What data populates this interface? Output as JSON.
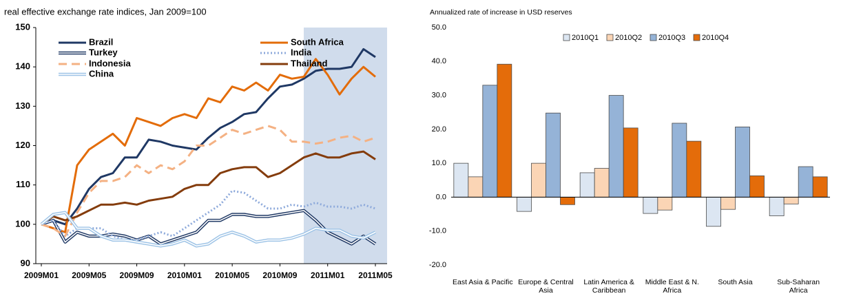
{
  "chart_data": [
    {
      "type": "line",
      "title": "real effective exchange rate indices, Jan 2009=100",
      "categories": [
        "2009M01",
        null,
        null,
        null,
        "2009M05",
        null,
        null,
        null,
        "2009M09",
        null,
        null,
        null,
        "2010M01",
        null,
        null,
        null,
        "2010M05",
        null,
        null,
        null,
        "2010M09",
        null,
        null,
        null,
        "2011M01",
        null,
        null,
        null,
        "2011M05"
      ],
      "ylim": [
        90,
        150
      ],
      "yticks": [
        90,
        100,
        110,
        120,
        130,
        140,
        150
      ],
      "series": [
        {
          "name": "Brazil",
          "color": "#1f3864",
          "style": "solid",
          "values": [
            100,
            101,
            100,
            104,
            109,
            112,
            113,
            117,
            117,
            121.5,
            121,
            120,
            119.5,
            119,
            122,
            124.5,
            126,
            128,
            128.5,
            132,
            135,
            135.5,
            137,
            139,
            139.5,
            139.5,
            140,
            144.5,
            142.5
          ]
        },
        {
          "name": "South Africa",
          "color": "#e36c09",
          "style": "solid",
          "values": [
            100,
            99,
            98,
            115,
            119,
            121,
            123,
            120,
            127,
            126,
            125,
            127,
            128,
            127,
            132,
            131,
            135,
            134,
            136,
            134,
            138,
            137,
            137.5,
            142,
            138,
            133,
            137,
            140,
            137.5
          ]
        },
        {
          "name": "Turkey",
          "color": "#1f3864",
          "style": "double",
          "values": [
            100,
            101,
            95.5,
            98,
            97,
            97,
            97.5,
            97,
            96,
            97,
            95,
            96,
            97,
            98,
            101,
            101,
            102.5,
            102.5,
            102,
            102,
            102.5,
            103,
            103.5,
            101,
            98,
            96.5,
            95,
            97,
            95
          ]
        },
        {
          "name": "India",
          "color": "#8eaadb",
          "style": "dotted",
          "values": [
            100,
            101,
            97,
            99,
            99,
            99,
            97,
            96,
            96,
            97,
            98,
            97,
            99,
            101,
            103,
            105,
            108.5,
            108,
            106,
            104,
            104,
            105,
            104.5,
            105.5,
            104.5,
            104.5,
            104,
            105,
            104
          ]
        },
        {
          "name": "Indonesia",
          "color": "#f4b183",
          "style": "dashed",
          "values": [
            100,
            99,
            97,
            103,
            108,
            111,
            111,
            112,
            115,
            113,
            115,
            114,
            116,
            120,
            120,
            122,
            124,
            123,
            124,
            125,
            124,
            121,
            121,
            120.5,
            121,
            122,
            122.5,
            121,
            122
          ]
        },
        {
          "name": "Thailand",
          "color": "#843c0c",
          "style": "solid",
          "values": [
            100,
            102,
            101,
            102,
            103.5,
            105,
            105,
            105.5,
            105,
            106,
            106.5,
            107,
            109,
            110,
            110,
            113,
            114,
            114.5,
            114.5,
            112,
            113,
            115,
            117,
            118,
            117,
            117,
            118,
            118.5,
            116.5
          ]
        },
        {
          "name": "China",
          "color": "#9dc3e6",
          "style": "double",
          "values": [
            100,
            102.5,
            103,
            99,
            99,
            97,
            96,
            96,
            95.5,
            95,
            94.5,
            95,
            96,
            94.5,
            95,
            97,
            98,
            97,
            95.5,
            96,
            96,
            96.5,
            97.5,
            99,
            98.5,
            98.5,
            97,
            96.5,
            98
          ]
        }
      ]
    },
    {
      "type": "bar",
      "title": "Annualized rate of increase in USD reserves",
      "categories": [
        "East Asia & Pacific",
        "Europe & Central Asia",
        "Latin America & Caribbean",
        "Middle East & N. Africa",
        "South Asia",
        "Sub-Saharan Africa"
      ],
      "ylim": [
        -20,
        50
      ],
      "yticks": [
        {
          "value": -20,
          "label": "-20.0"
        },
        {
          "value": -10,
          "label": "-10.0"
        },
        {
          "value": 0,
          "label": "0.0"
        },
        {
          "value": 10,
          "label": "10.0"
        },
        {
          "value": 20,
          "label": "20.0"
        },
        {
          "value": 30,
          "label": "30.0"
        },
        {
          "value": 40,
          "label": "40.0"
        },
        {
          "value": 50,
          "label": "50.0"
        }
      ],
      "series": [
        {
          "name": "2010Q1",
          "color": "#dce6f2",
          "values": [
            10,
            -4.2,
            7.2,
            -4.8,
            -8.6,
            -5.5
          ]
        },
        {
          "name": "2010Q2",
          "color": "#fbd5b5",
          "values": [
            6,
            10,
            8.5,
            -3.8,
            -3.6,
            -2
          ]
        },
        {
          "name": "2010Q3",
          "color": "#95b3d7",
          "values": [
            33,
            24.8,
            30,
            21.8,
            20.7,
            9
          ]
        },
        {
          "name": "2010Q4",
          "color": "#e46c0a",
          "values": [
            39.2,
            -2.2,
            20.4,
            16.5,
            6.3,
            6
          ]
        }
      ]
    }
  ]
}
